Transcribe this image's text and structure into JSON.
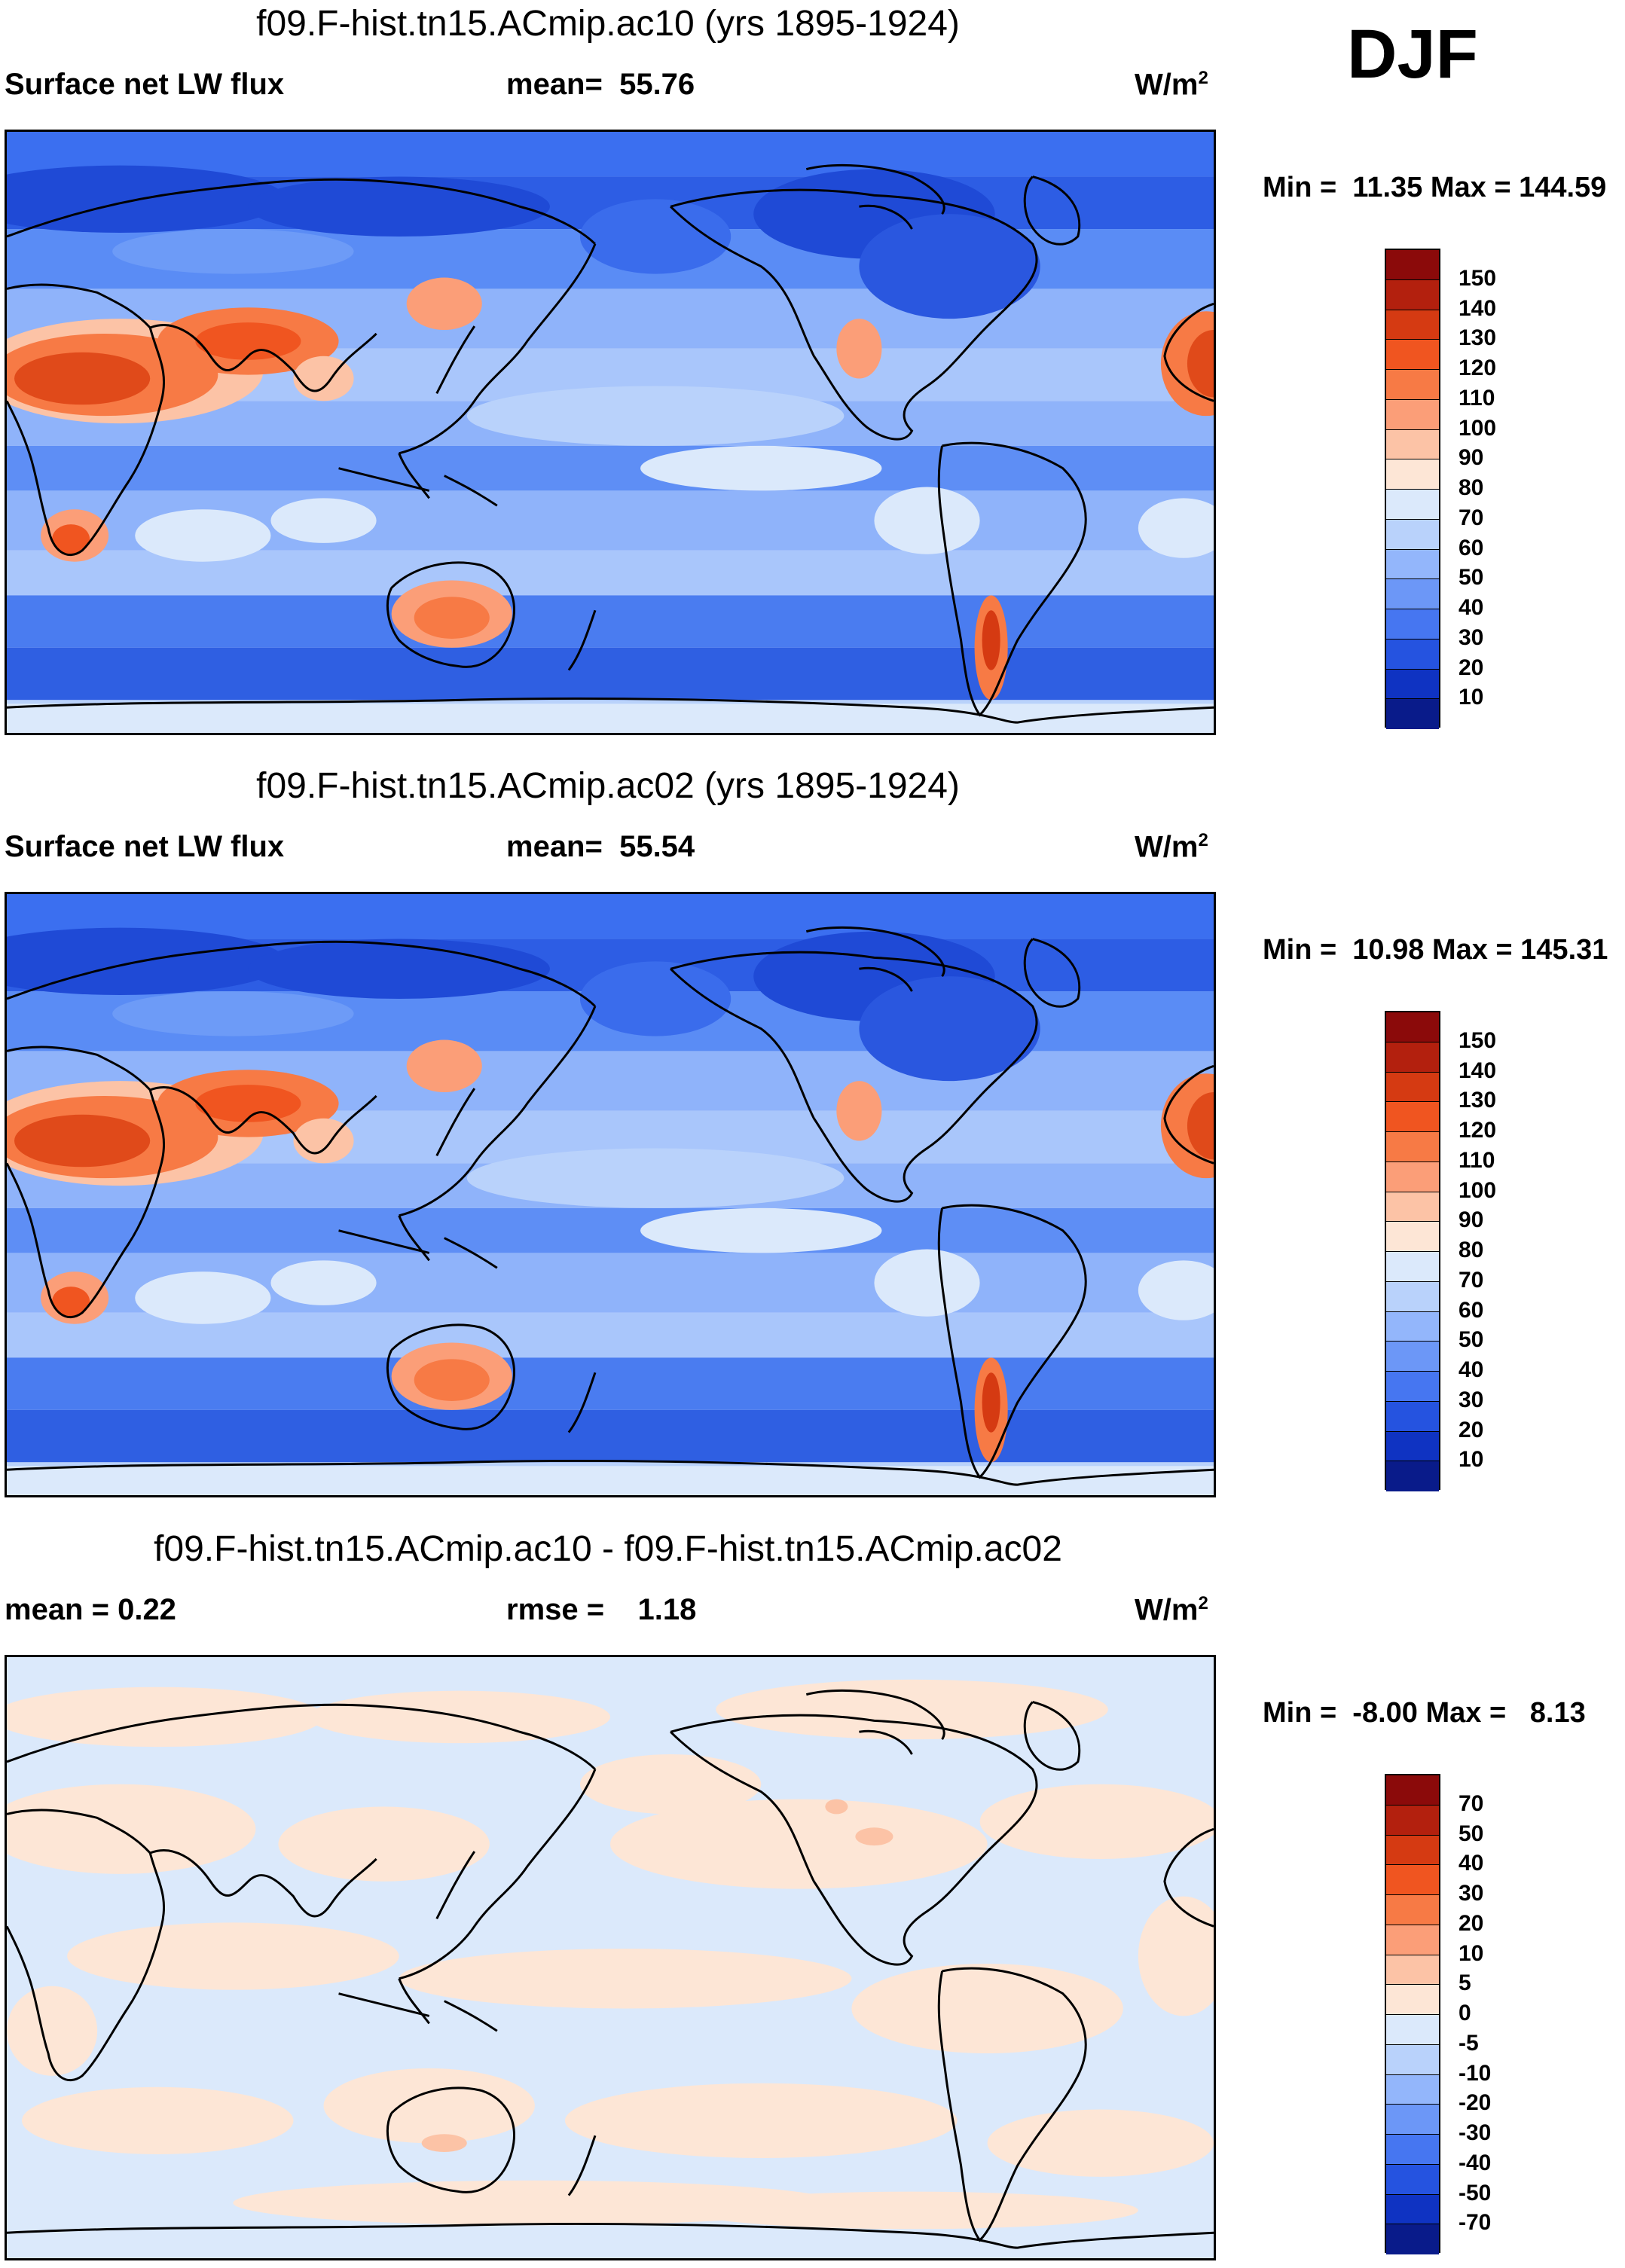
{
  "season": "DJF",
  "panels": [
    {
      "title": "f09.F-hist.tn15.ACmip.ac10 (yrs 1895-1924)",
      "left_label": "Surface net LW flux",
      "center_label": "mean=  55.76",
      "unit_base": "W/m",
      "unit_exp": "2",
      "minmax": "Min =  11.35 Max = 144.59",
      "field": "absolute",
      "colorbar": {
        "labels": [
          "150",
          "140",
          "130",
          "120",
          "110",
          "100",
          "90",
          "80",
          "70",
          "60",
          "50",
          "40",
          "30",
          "20",
          "10"
        ],
        "colors": [
          "#8b0a0a",
          "#b3200e",
          "#d53a12",
          "#f05520",
          "#f77a45",
          "#fb9e78",
          "#fcc3a6",
          "#fde6d6",
          "#dbe9fb",
          "#b9d2fb",
          "#93b6fb",
          "#6c97f7",
          "#4676f1",
          "#2553e0",
          "#0f33c2",
          "#091b8a"
        ]
      }
    },
    {
      "title": "f09.F-hist.tn15.ACmip.ac02 (yrs 1895-1924)",
      "left_label": "Surface net LW flux",
      "center_label": "mean=  55.54",
      "unit_base": "W/m",
      "unit_exp": "2",
      "minmax": "Min =  10.98 Max = 145.31",
      "field": "absolute",
      "colorbar": {
        "labels": [
          "150",
          "140",
          "130",
          "120",
          "110",
          "100",
          "90",
          "80",
          "70",
          "60",
          "50",
          "40",
          "30",
          "20",
          "10"
        ],
        "colors": [
          "#8b0a0a",
          "#b3200e",
          "#d53a12",
          "#f05520",
          "#f77a45",
          "#fb9e78",
          "#fcc3a6",
          "#fde6d6",
          "#dbe9fb",
          "#b9d2fb",
          "#93b6fb",
          "#6c97f7",
          "#4676f1",
          "#2553e0",
          "#0f33c2",
          "#091b8a"
        ]
      }
    },
    {
      "title": "f09.F-hist.tn15.ACmip.ac10 - f09.F-hist.tn15.ACmip.ac02",
      "left_label": "mean =   0.22",
      "center_label": "rmse =    1.18",
      "unit_base": "W/m",
      "unit_exp": "2",
      "minmax": "Min =  -8.00 Max =   8.13",
      "field": "difference",
      "colorbar": {
        "labels": [
          "70",
          "50",
          "40",
          "30",
          "20",
          "10",
          "5",
          "0",
          "-5",
          "-10",
          "-20",
          "-30",
          "-40",
          "-50",
          "-70"
        ],
        "colors": [
          "#8b0a0a",
          "#b3200e",
          "#d53a12",
          "#f05520",
          "#f77a45",
          "#fb9e78",
          "#fcc3a6",
          "#fde6d6",
          "#dbe9fb",
          "#b9d2fb",
          "#93b6fb",
          "#6c97f7",
          "#4676f1",
          "#2553e0",
          "#0f33c2",
          "#091b8a"
        ]
      }
    }
  ]
}
